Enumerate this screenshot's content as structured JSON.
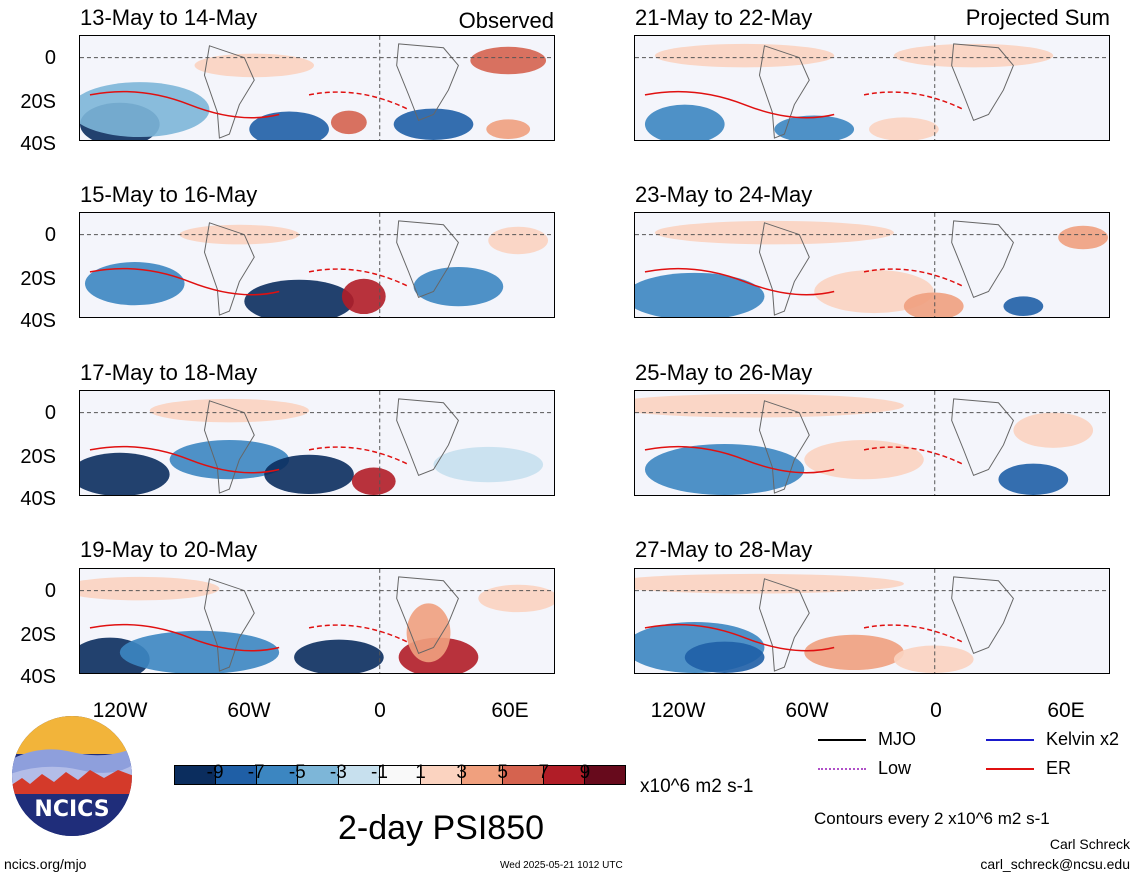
{
  "panels": {
    "left": [
      {
        "title": "13-May to 14-May",
        "corner": "Observed"
      },
      {
        "title": "15-May to 16-May",
        "corner": ""
      },
      {
        "title": "17-May to 18-May",
        "corner": ""
      },
      {
        "title": "19-May to 20-May",
        "corner": ""
      }
    ],
    "right": [
      {
        "title": "21-May to 22-May",
        "corner": "Projected Sum"
      },
      {
        "title": "23-May to 24-May",
        "corner": ""
      },
      {
        "title": "25-May to 26-May",
        "corner": ""
      },
      {
        "title": "27-May to 28-May",
        "corner": ""
      }
    ]
  },
  "axes": {
    "y_ticks": [
      "0",
      "20S",
      "40S"
    ],
    "x_ticks": [
      "120W",
      "60W",
      "0",
      "60E"
    ]
  },
  "legend": {
    "mjo": "MJO",
    "kelvin": "Kelvin x2",
    "low": "Low",
    "er": "ER",
    "colors": {
      "mjo": "#000000",
      "kelvin": "#1a1acc",
      "low": "#b050c8",
      "er": "#e01010"
    }
  },
  "colorbar": {
    "labels": [
      "-9",
      "-7",
      "-5",
      "-3",
      "-1",
      "1",
      "3",
      "5",
      "7",
      "9"
    ],
    "colors": [
      "#0b2d5e",
      "#1f5fa6",
      "#3c86c1",
      "#7db6d8",
      "#c7e0ee",
      "#f9f9f9",
      "#fbd3c0",
      "#f0a07e",
      "#d5634f",
      "#b11d27",
      "#670a1c"
    ],
    "units": "x10^6 m2 s-1"
  },
  "main_title": "2-day PSI850",
  "contours_note": "Contours every 2 x10^6 m2 s-1",
  "author": "Carl Schreck",
  "email": "carl_schreck@ncsu.edu",
  "site": "ncics.org/mjo",
  "timestamp": "Wed 2025-05-21 1012 UTC",
  "logo": {
    "text": "NCICS"
  }
}
